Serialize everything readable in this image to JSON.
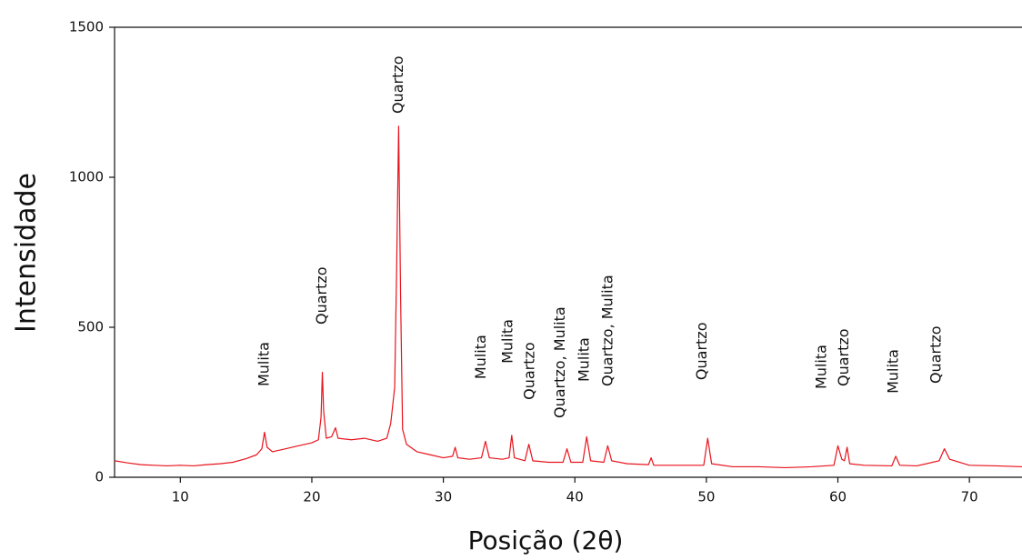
{
  "chart_data": {
    "type": "line",
    "xlabel": "Posição (2θ)",
    "ylabel": "Intensidade",
    "x": [
      5,
      6,
      7,
      8,
      9,
      10,
      11,
      12,
      13,
      14,
      15,
      15.8,
      16.2,
      16.4,
      16.6,
      17,
      18,
      19,
      20,
      20.5,
      20.7,
      20.8,
      20.9,
      21.1,
      21.5,
      21.8,
      22,
      23,
      24,
      25,
      25.7,
      26,
      26.3,
      26.45,
      26.6,
      26.75,
      26.9,
      27.2,
      28,
      29,
      30,
      30.7,
      30.9,
      31.1,
      32,
      32.9,
      33.2,
      33.5,
      34.5,
      35,
      35.2,
      35.4,
      36.2,
      36.5,
      36.8,
      38,
      39.1,
      39.4,
      39.7,
      40.6,
      40.9,
      41.2,
      42.2,
      42.5,
      42.8,
      44,
      45.6,
      45.8,
      46,
      48,
      49.8,
      50.1,
      50.4,
      52,
      54,
      56,
      58,
      59.7,
      60,
      60.3,
      60.5,
      60.7,
      60.9,
      62,
      64.1,
      64.4,
      64.7,
      66,
      67.7,
      68.1,
      68.5,
      70,
      72,
      74
    ],
    "series": [
      {
        "color": "#e8131c",
        "values": [
          55,
          48,
          42,
          40,
          38,
          40,
          38,
          42,
          45,
          50,
          62,
          75,
          95,
          150,
          100,
          85,
          95,
          105,
          115,
          125,
          200,
          350,
          220,
          130,
          135,
          165,
          130,
          125,
          130,
          120,
          130,
          180,
          300,
          700,
          1170,
          600,
          160,
          110,
          85,
          75,
          65,
          70,
          100,
          65,
          60,
          65,
          120,
          65,
          60,
          65,
          140,
          65,
          55,
          110,
          55,
          50,
          50,
          95,
          50,
          50,
          135,
          55,
          50,
          105,
          55,
          45,
          42,
          65,
          40,
          40,
          40,
          130,
          45,
          35,
          35,
          32,
          35,
          40,
          105,
          60,
          55,
          100,
          45,
          40,
          38,
          70,
          40,
          38,
          55,
          95,
          60,
          40,
          38,
          35
        ]
      }
    ],
    "xlim": [
      5,
      74
    ],
    "ylim": [
      0,
      1500
    ],
    "xticks": [
      10,
      20,
      30,
      40,
      50,
      60,
      70
    ],
    "yticks": [
      0,
      500,
      1000,
      1500
    ],
    "grid": false,
    "annotations": [
      {
        "text": "Mulita",
        "x": 16.4,
        "y": 303
      },
      {
        "text": "Quartzo",
        "x": 20.8,
        "y": 509
      },
      {
        "text": "Quartzo",
        "x": 26.6,
        "y": 1212
      },
      {
        "text": "Mulita",
        "x": 32.9,
        "y": 327
      },
      {
        "text": "Mulita",
        "x": 34.95,
        "y": 379
      },
      {
        "text": "Quartzo",
        "x": 36.6,
        "y": 258
      },
      {
        "text": "Quartzo, Mulita",
        "x": 38.9,
        "y": 197
      },
      {
        "text": "Mulita",
        "x": 40.75,
        "y": 318
      },
      {
        "text": "Quartzo, Mulita",
        "x": 42.55,
        "y": 303
      },
      {
        "text": "Quartzo",
        "x": 49.7,
        "y": 324
      },
      {
        "text": "Mulita",
        "x": 58.8,
        "y": 294
      },
      {
        "text": "Quartzo",
        "x": 60.5,
        "y": 303
      },
      {
        "text": "Mulita",
        "x": 64.25,
        "y": 279
      },
      {
        "text": "Quartzo",
        "x": 67.5,
        "y": 312
      }
    ]
  }
}
